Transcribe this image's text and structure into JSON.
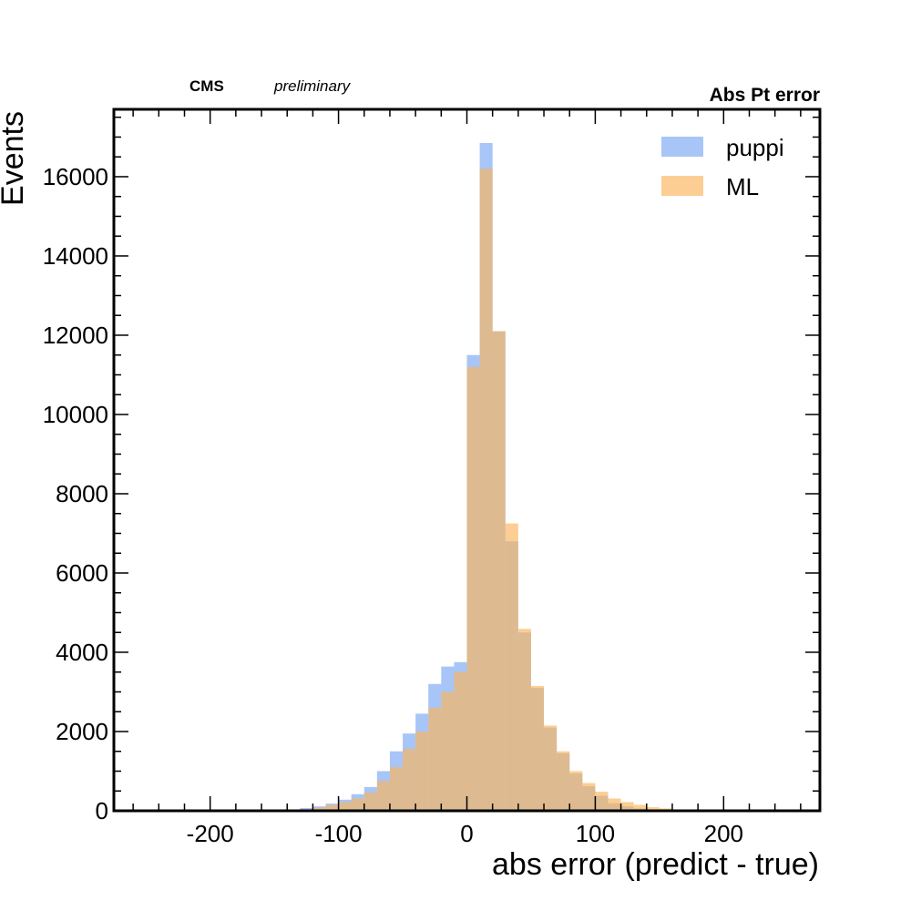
{
  "header": {
    "experiment": "CMS",
    "status": "preliminary",
    "title": "Abs Pt error"
  },
  "chart_data": {
    "type": "bar",
    "histogram": true,
    "title": "Abs Pt error",
    "xlabel": "abs error (predict - true)",
    "ylabel": "Events",
    "xlim": [
      -275,
      275
    ],
    "ylim": [
      0,
      17700
    ],
    "x_ticks": [
      -200,
      -100,
      0,
      100,
      200
    ],
    "x_tick_labels": [
      "-200",
      "-100",
      "0",
      "100",
      "200"
    ],
    "y_ticks": [
      0,
      2000,
      4000,
      6000,
      8000,
      10000,
      12000,
      14000,
      16000
    ],
    "y_tick_labels": [
      "0",
      "2000",
      "4000",
      "6000",
      "8000",
      "10000",
      "12000",
      "14000",
      "16000"
    ],
    "grid": false,
    "legend_position": "top-right",
    "bin_edges": [
      -150,
      -140,
      -130,
      -120,
      -110,
      -100,
      -90,
      -80,
      -70,
      -60,
      -50,
      -40,
      -30,
      -20,
      -10,
      0,
      10,
      20,
      30,
      40,
      50,
      60,
      70,
      80,
      90,
      100,
      110,
      120,
      130,
      140,
      150,
      160,
      170,
      180
    ],
    "series": [
      {
        "name": "puppi",
        "color": "#7aa6f2",
        "opacity": 0.65,
        "values": [
          20,
          30,
          70,
          110,
          180,
          280,
          420,
          600,
          1000,
          1500,
          1950,
          2450,
          3200,
          3640,
          3750,
          11500,
          16850,
          12100,
          6800,
          4500,
          3100,
          2100,
          1450,
          940,
          620,
          380,
          190,
          110,
          60,
          30,
          15,
          10,
          5
        ]
      },
      {
        "name": "ML",
        "color": "#fbb45a",
        "opacity": 0.65,
        "values": [
          10,
          20,
          40,
          80,
          150,
          220,
          310,
          460,
          750,
          1100,
          1560,
          2000,
          2600,
          3000,
          3500,
          11200,
          16200,
          12100,
          7250,
          4590,
          3150,
          2150,
          1500,
          1000,
          700,
          480,
          310,
          220,
          150,
          90,
          60,
          30,
          15
        ]
      }
    ]
  }
}
